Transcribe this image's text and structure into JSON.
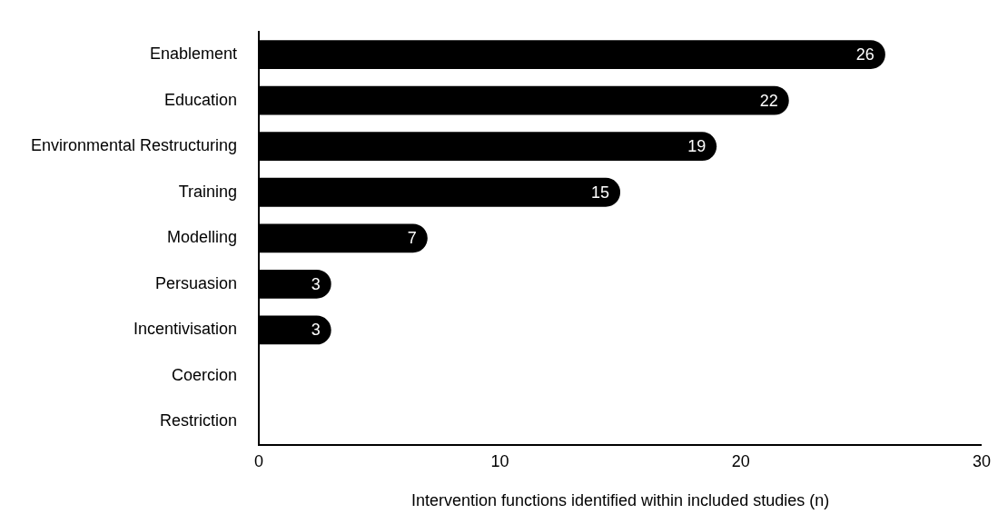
{
  "chart_data": {
    "type": "bar",
    "orientation": "horizontal",
    "xlabel": "Intervention functions identified within included studies (n)",
    "categories": [
      "Enablement",
      "Education",
      "Environmental Restructuring",
      "Training",
      "Modelling",
      "Persuasion",
      "Incentivisation",
      "Coercion",
      "Restriction"
    ],
    "values": [
      26,
      22,
      19,
      15,
      7,
      3,
      3,
      0,
      0
    ],
    "value_labels": [
      "26",
      "22",
      "19",
      "15",
      "7",
      "3",
      "3",
      null,
      null
    ],
    "color": "#000000",
    "xlim": [
      0,
      30
    ],
    "xticks": [
      0,
      10,
      20,
      30
    ],
    "grid": false,
    "legend": false
  }
}
